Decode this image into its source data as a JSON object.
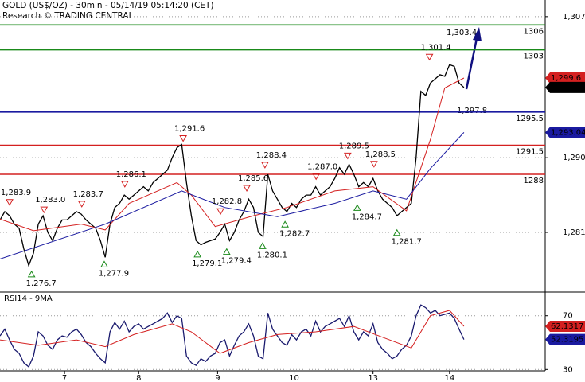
{
  "header": {
    "title": "GOLD (US$/OZ) - 30min - 05/14/19 05:14:20 (CET)",
    "source": "Research © TRADING CENTRAL"
  },
  "chart_data": [
    {
      "type": "line",
      "xlim": [
        0,
        114
      ],
      "xticks": [
        {
          "value": 13.5,
          "label": "7"
        },
        {
          "value": 29,
          "label": "8"
        },
        {
          "value": 45.5,
          "label": "9"
        },
        {
          "value": 61.5,
          "label": "10"
        },
        {
          "value": 78,
          "label": "13"
        },
        {
          "value": 94,
          "label": "14"
        }
      ],
      "ylim": [
        1274,
        1309
      ],
      "yticks": [
        {
          "value": 1307,
          "label": "1,307"
        },
        {
          "value": 1290,
          "label": "1,290"
        },
        {
          "value": 1281,
          "label": "1,281"
        }
      ],
      "grid": true,
      "series": [
        {
          "color": "#000000",
          "x": [
            0,
            1,
            2,
            3,
            4,
            5,
            6,
            7,
            8,
            9,
            10,
            11,
            12,
            13,
            14,
            15,
            16,
            17,
            18,
            19,
            20,
            21,
            22,
            23,
            24,
            25,
            26,
            27,
            28,
            29,
            30,
            31,
            32,
            33,
            34,
            35,
            36,
            37,
            38,
            39,
            40,
            41,
            42,
            43,
            44,
            45,
            46,
            47,
            48,
            49,
            50,
            51,
            52,
            53,
            54,
            55,
            56,
            57,
            58,
            59,
            60,
            61,
            62,
            63,
            64,
            65,
            66,
            67,
            68,
            69,
            70,
            71,
            72,
            73,
            74,
            75,
            76,
            77,
            78,
            79,
            80,
            81,
            82,
            83,
            84,
            85,
            86,
            87,
            88,
            89,
            90,
            91,
            92,
            93,
            94,
            95,
            96,
            97
          ],
          "values": [
            1282.5,
            1283.5,
            1283,
            1282,
            1281.5,
            1279,
            1277,
            1278.5,
            1282,
            1283,
            1281,
            1280,
            1281.5,
            1282.5,
            1282.5,
            1283,
            1283.5,
            1283.2,
            1282.5,
            1282,
            1281.5,
            1280,
            1278,
            1282,
            1284,
            1284.5,
            1285.5,
            1285,
            1285.5,
            1286,
            1286.5,
            1286,
            1287,
            1287.5,
            1288,
            1288.5,
            1290,
            1291.2,
            1291.6,
            1287,
            1283,
            1280,
            1279.5,
            1279.8,
            1280,
            1280.2,
            1281,
            1282,
            1280,
            1281,
            1282.5,
            1283.5,
            1285,
            1284,
            1281,
            1280.5,
            1288,
            1286,
            1285,
            1284,
            1283.5,
            1284.5,
            1284,
            1285,
            1285.5,
            1285.5,
            1286.5,
            1285.5,
            1286,
            1286.5,
            1287.5,
            1288.8,
            1288,
            1289.2,
            1288,
            1286.5,
            1287,
            1286.5,
            1287.5,
            1286,
            1285,
            1284.5,
            1284,
            1283,
            1283.5,
            1284,
            1284.5,
            1290,
            1298,
            1297.5,
            1299,
            1299.5,
            1300,
            1299.8,
            1301.2,
            1301,
            1299,
            1298.46
          ]
        },
        {
          "color": "#d42020",
          "x": [
            0,
            7,
            17,
            22,
            27,
            37,
            40,
            45,
            53,
            60,
            70,
            78,
            85,
            90,
            93,
            97
          ],
          "values": [
            1282.6,
            1281.2,
            1282,
            1281.3,
            1284.5,
            1287,
            1285.5,
            1281.7,
            1283,
            1284,
            1286,
            1286.5,
            1283.6,
            1292.2,
            1298.4,
            1299.6
          ]
        },
        {
          "color": "#1a1aa0",
          "x": [
            0,
            22,
            38,
            47,
            58,
            70,
            78,
            85,
            90,
            97
          ],
          "values": [
            1277.8,
            1282,
            1286,
            1284,
            1282.9,
            1284.5,
            1286,
            1285,
            1288.7,
            1293.04
          ]
        }
      ],
      "levels": [
        {
          "value": 1306,
          "label": "1306",
          "color": "#1a8a1a"
        },
        {
          "value": 1303,
          "label": "1303",
          "color": "#1a8a1a"
        },
        {
          "value": 1295.5,
          "label": "1295.5",
          "color": "#1a1aa0"
        },
        {
          "value": 1291.5,
          "label": "1291.5",
          "color": "#d42020"
        },
        {
          "value": 1288,
          "label": "1288",
          "color": "#d42020"
        }
      ],
      "highs": [
        {
          "x": 2,
          "value": 1283.9,
          "label": "1,283.9"
        },
        {
          "x": 9.2,
          "value": 1283.0,
          "label": "1,283.0"
        },
        {
          "x": 17.1,
          "value": 1283.7,
          "label": "1,283.7"
        },
        {
          "x": 26.1,
          "value": 1286.1,
          "label": "1,286.1"
        },
        {
          "x": 38.3,
          "value": 1291.6,
          "label": "1,291.6"
        },
        {
          "x": 46.1,
          "value": 1282.8,
          "label": "1,282.8"
        },
        {
          "x": 51.6,
          "value": 1285.6,
          "label": "1,285.6"
        },
        {
          "x": 55.4,
          "value": 1288.4,
          "label": "1,288.4"
        },
        {
          "x": 66.1,
          "value": 1287.0,
          "label": "1,287.0"
        },
        {
          "x": 72.7,
          "value": 1289.5,
          "label": "1,289.5"
        },
        {
          "x": 78.2,
          "value": 1288.5,
          "label": "1,288.5"
        },
        {
          "x": 89.8,
          "value": 1301.4,
          "label": "1,301.4"
        }
      ],
      "lows": [
        {
          "x": 6.6,
          "value": 1276.7,
          "label": "1,276.7"
        },
        {
          "x": 21.8,
          "value": 1277.9,
          "label": "1,277.9"
        },
        {
          "x": 41.3,
          "value": 1279.1,
          "label": "1,279.1"
        },
        {
          "x": 47.4,
          "value": 1279.4,
          "label": "1,279.4"
        },
        {
          "x": 54.9,
          "value": 1280.1,
          "label": "1,280.1"
        },
        {
          "x": 59.6,
          "value": 1282.7,
          "label": "1,282.7"
        },
        {
          "x": 74.7,
          "value": 1284.7,
          "label": "1,284.7"
        },
        {
          "x": 83,
          "value": 1281.7,
          "label": "1,281.7"
        }
      ],
      "notes": [
        {
          "value": 1303.4,
          "label": "1,303.4"
        },
        {
          "value": 1297.8,
          "label": "1,297.8"
        }
      ],
      "tags": [
        {
          "value": 1299.6,
          "label": "1,299.6",
          "color": "#d42020"
        },
        {
          "value": 1298.46,
          "label": "1,298.46",
          "color": "#000000"
        },
        {
          "value": 1293.04,
          "label": "1,293.04",
          "color": "#1a1aa0"
        }
      ]
    },
    {
      "type": "line",
      "title": "RSI14 - 9MA",
      "xlim": [
        0,
        114
      ],
      "ylim": [
        29,
        87
      ],
      "yticks": [
        70,
        30
      ],
      "series": [
        {
          "color": "#1a1a6e",
          "x": [
            0,
            1,
            2,
            3,
            4,
            5,
            6,
            7,
            8,
            9,
            10,
            11,
            12,
            13,
            14,
            15,
            16,
            17,
            18,
            19,
            20,
            21,
            22,
            23,
            24,
            25,
            26,
            27,
            28,
            29,
            30,
            31,
            32,
            33,
            34,
            35,
            36,
            37,
            38,
            39,
            40,
            41,
            42,
            43,
            44,
            45,
            46,
            47,
            48,
            49,
            50,
            51,
            52,
            53,
            54,
            55,
            56,
            57,
            58,
            59,
            60,
            61,
            62,
            63,
            64,
            65,
            66,
            67,
            68,
            69,
            70,
            71,
            72,
            73,
            74,
            75,
            76,
            77,
            78,
            79,
            80,
            81,
            82,
            83,
            84,
            85,
            86,
            87,
            88,
            89,
            90,
            91,
            92,
            93,
            94,
            95,
            96,
            97
          ],
          "values": [
            55,
            60,
            52,
            45,
            42,
            35,
            32,
            40,
            58,
            55,
            48,
            45,
            52,
            55,
            54,
            58,
            60,
            56,
            50,
            47,
            42,
            38,
            35,
            58,
            65,
            60,
            66,
            58,
            62,
            64,
            60,
            62,
            64,
            66,
            68,
            72,
            65,
            70,
            68,
            40,
            35,
            33,
            38,
            36,
            40,
            42,
            50,
            52,
            40,
            48,
            55,
            58,
            64,
            55,
            40,
            38,
            72,
            60,
            55,
            50,
            48,
            56,
            52,
            58,
            60,
            55,
            66,
            58,
            62,
            64,
            66,
            68,
            62,
            70,
            58,
            52,
            58,
            55,
            64,
            50,
            45,
            42,
            38,
            40,
            45,
            48,
            55,
            70,
            78,
            76,
            72,
            74,
            70,
            71,
            72,
            68,
            60,
            52.3195
          ]
        },
        {
          "color": "#d42020",
          "x": [
            0,
            8,
            16,
            22,
            28,
            36,
            40,
            46,
            52,
            58,
            66,
            74,
            80,
            86,
            90,
            94,
            97
          ],
          "values": [
            52,
            48,
            52,
            47,
            56,
            64,
            58,
            42,
            50,
            56,
            58,
            62,
            54,
            46,
            70,
            74,
            62.1317
          ]
        }
      ],
      "tags": [
        {
          "value": 62.1317,
          "label": "62.1317",
          "color": "#d42020"
        },
        {
          "value": 52.3195,
          "label": "52.3195",
          "color": "#1a1aa0"
        }
      ]
    }
  ]
}
